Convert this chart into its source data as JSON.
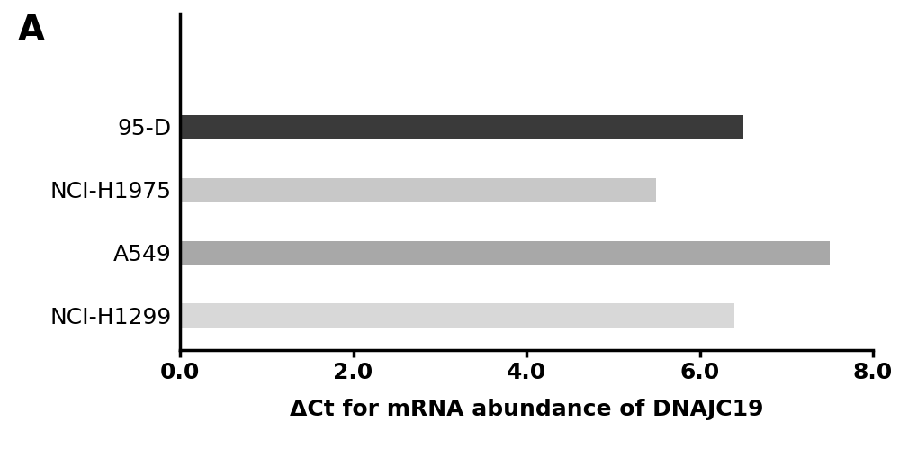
{
  "categories": [
    "NCI-H1299",
    "A549",
    "NCI-H1975",
    "95-D"
  ],
  "values": [
    6.4,
    7.5,
    5.5,
    6.5
  ],
  "bar_colors": [
    "#d8d8d8",
    "#a8a8a8",
    "#c8c8c8",
    "#3a3a3a"
  ],
  "xlabel": "ΔCt for mRNA abundance of DNAJC19",
  "xlim": [
    0,
    8.0
  ],
  "xticks": [
    0.0,
    2.0,
    4.0,
    6.0,
    8.0
  ],
  "xtick_labels": [
    "0.0",
    "2.0",
    "4.0",
    "6.0",
    "8.0"
  ],
  "panel_label": "A",
  "background_color": "#ffffff",
  "bar_height": 0.38,
  "label_fontsize": 18,
  "tick_fontsize": 18,
  "panel_fontsize": 28,
  "category_fontsize": 18
}
